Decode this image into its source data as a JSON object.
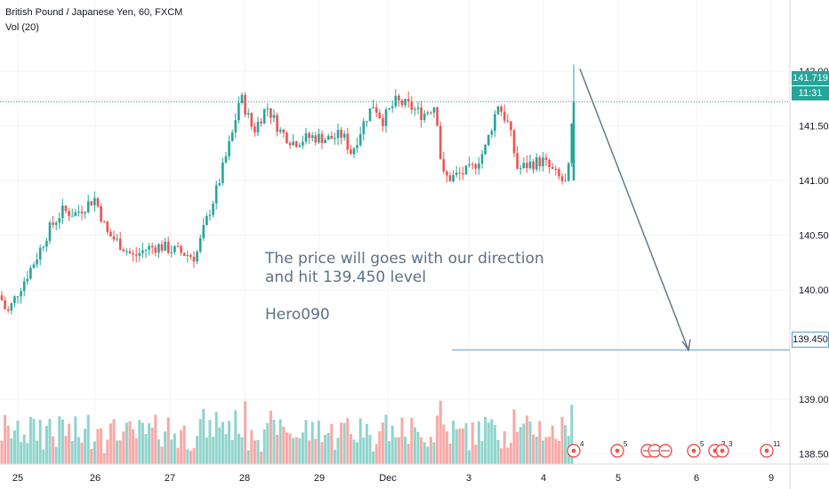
{
  "legend": {
    "symbol_line": "British Pound / Japanese Yen, 60, FXCM",
    "volume_line": "Vol (20)"
  },
  "annotation": {
    "line1": "The price will goes with our direction",
    "line2": "and hit 139.450 level",
    "author": "Hero090"
  },
  "price_axis": {
    "ticks": [
      "142.000",
      "141.500",
      "141.000",
      "140.500",
      "140.000",
      "139.000",
      "138.500"
    ],
    "close_label": "141.719",
    "timer_label": "11:31",
    "target_label": "139.450"
  },
  "time_axis": {
    "ticks": [
      "25",
      "26",
      "27",
      "28",
      "29",
      "Dec",
      "3",
      "4",
      "5",
      "6",
      "9"
    ]
  },
  "event_badges": [
    "4",
    "5",
    "5",
    "2",
    "3",
    "11"
  ],
  "colors": {
    "up": "#26a69a",
    "down": "#ef5350",
    "up_volume": "#8fd4cd",
    "down_volume": "#f7a9a7",
    "arrow": "#5d7185",
    "target_line": "#5b9cc9",
    "grid": "#f0f3fa"
  },
  "chart_data": {
    "type": "candlestick",
    "title": "British Pound / Japanese Yen, 60, FXCM",
    "ylim": [
      138.4,
      142.3
    ],
    "x_categories": [
      "25",
      "26",
      "27",
      "28",
      "29",
      "Dec",
      "3",
      "4",
      "5",
      "6",
      "9"
    ],
    "last_close": 141.719,
    "target_level": 139.45,
    "forecast_arrow": {
      "from": 142.02,
      "to": 139.45
    },
    "series": [
      {
        "name": "Vol (20)",
        "type": "volume"
      }
    ]
  }
}
